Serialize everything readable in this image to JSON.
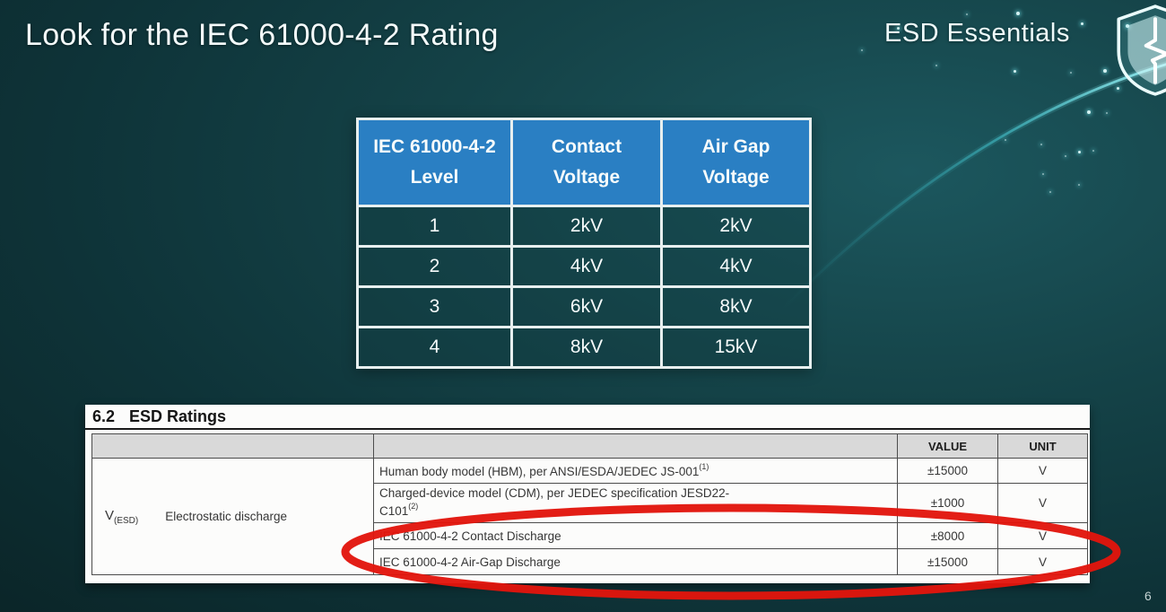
{
  "slide": {
    "title": "Look for the IEC 61000-4-2 Rating",
    "brand": "ESD Essentials",
    "page_number": "6",
    "logo_icon": "shield-pulse-icon"
  },
  "rating_table": {
    "headers": [
      "IEC 61000-4-2\nLevel",
      "Contact\nVoltage",
      "Air Gap\nVoltage"
    ],
    "rows": [
      [
        "1",
        "2kV",
        "2kV"
      ],
      [
        "2",
        "4kV",
        "4kV"
      ],
      [
        "3",
        "6kV",
        "8kV"
      ],
      [
        "4",
        "8kV",
        "15kV"
      ]
    ]
  },
  "datasheet": {
    "section_number": "6.2",
    "section_title": "ESD Ratings",
    "value_header": "VALUE",
    "unit_header": "UNIT",
    "symbol": "V",
    "symbol_subscript": "(ESD)",
    "parameter": "Electrostatic discharge",
    "rows": [
      {
        "desc": "Human body model (HBM), per ANSI/ESDA/JEDEC JS-001",
        "sup": "(1)",
        "value": "±15000",
        "unit": "V"
      },
      {
        "desc": "Charged-device model (CDM), per JEDEC specification JESD22-\nC101",
        "sup": "(2)",
        "value": "±1000",
        "unit": "V"
      },
      {
        "desc": "IEC 61000-4-2 Contact Discharge",
        "sup": "",
        "value": "±8000",
        "unit": "V"
      },
      {
        "desc": "IEC 61000-4-2 Air-Gap Discharge",
        "sup": "",
        "value": "±15000",
        "unit": "V"
      }
    ]
  },
  "colors": {
    "table_header_blue": "#2a7fc3",
    "highlight_circle_red": "#e2150c",
    "background_teal_dark": "#0a2225",
    "background_teal_light": "#1c575e"
  }
}
